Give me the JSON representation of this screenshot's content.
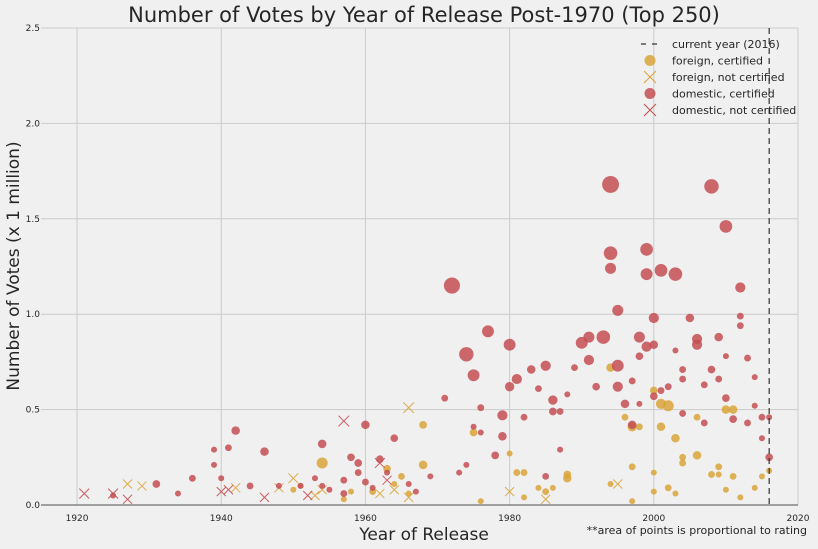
{
  "chart_data": {
    "type": "scatter",
    "title": "Number of Votes by Year of Release Post-1970 (Top 250)",
    "xlabel": "Year of Release",
    "ylabel": "Number of Votes (x 1 million)",
    "footnote": "**area of points is proportional to rating",
    "xlim": [
      1915,
      2020
    ],
    "ylim": [
      0,
      2.5
    ],
    "xticks": [
      1920,
      1940,
      1960,
      1980,
      2000,
      2020
    ],
    "yticks": [
      0.0,
      0.5,
      1.0,
      1.5,
      2.0,
      2.5
    ],
    "ytick_labels": [
      "0.0",
      "0.5",
      "1.0",
      "1.5",
      "2.0",
      "2.5"
    ],
    "grid": true,
    "legend_position": "top-right",
    "vline": {
      "x": 2016,
      "label": "current year (2016)"
    },
    "series": [
      {
        "name": "foreign, certified",
        "marker": "circle",
        "color": "#d9a43a",
        "points": [
          [
            1950,
            0.08,
            8.0
          ],
          [
            1951,
            0.1,
            8.0
          ],
          [
            1954,
            0.22,
            8.6
          ],
          [
            1957,
            0.03,
            8.0
          ],
          [
            1958,
            0.07,
            8.0
          ],
          [
            1961,
            0.07,
            8.1
          ],
          [
            1963,
            0.19,
            8.2
          ],
          [
            1964,
            0.11,
            8.0
          ],
          [
            1965,
            0.15,
            8.1
          ],
          [
            1966,
            0.06,
            8.0
          ],
          [
            1968,
            0.21,
            8.3
          ],
          [
            1968,
            0.42,
            8.2
          ],
          [
            1975,
            0.38,
            8.2
          ],
          [
            1976,
            0.02,
            8.0
          ],
          [
            1980,
            0.27,
            8.0
          ],
          [
            1981,
            0.17,
            8.1
          ],
          [
            1982,
            0.17,
            8.1
          ],
          [
            1982,
            0.04,
            8.0
          ],
          [
            1984,
            0.09,
            8.0
          ],
          [
            1985,
            0.07,
            8.1
          ],
          [
            1986,
            0.09,
            8.0
          ],
          [
            1988,
            0.14,
            8.3
          ],
          [
            1988,
            0.16,
            8.2
          ],
          [
            1994,
            0.11,
            8.0
          ],
          [
            1994,
            0.72,
            8.3
          ],
          [
            1996,
            0.46,
            8.1
          ],
          [
            1997,
            0.41,
            8.4
          ],
          [
            1997,
            0.2,
            8.1
          ],
          [
            1997,
            0.02,
            8.0
          ],
          [
            1998,
            0.41,
            8.1
          ],
          [
            2000,
            0.6,
            8.2
          ],
          [
            2000,
            0.17,
            8.0
          ],
          [
            2000,
            0.07,
            8.0
          ],
          [
            2001,
            0.53,
            8.5
          ],
          [
            2001,
            0.41,
            8.3
          ],
          [
            2002,
            0.52,
            8.6
          ],
          [
            2002,
            0.09,
            8.1
          ],
          [
            2003,
            0.35,
            8.3
          ],
          [
            2003,
            0.06,
            8.0
          ],
          [
            2004,
            0.22,
            8.1
          ],
          [
            2004,
            0.25,
            8.1
          ],
          [
            2006,
            0.46,
            8.1
          ],
          [
            2006,
            0.26,
            8.3
          ],
          [
            2008,
            0.16,
            8.1
          ],
          [
            2009,
            0.2,
            8.1
          ],
          [
            2009,
            0.16,
            8.0
          ],
          [
            2010,
            0.08,
            8.0
          ],
          [
            2010,
            0.5,
            8.3
          ],
          [
            2011,
            0.5,
            8.3
          ],
          [
            2011,
            0.15,
            8.1
          ],
          [
            2012,
            0.04,
            8.0
          ],
          [
            2014,
            0.09,
            8.0
          ],
          [
            2015,
            0.15,
            8.0
          ],
          [
            2016,
            0.18,
            8.0
          ]
        ]
      },
      {
        "name": "foreign, not certified",
        "marker": "x",
        "color": "#d9a43a",
        "points": [
          [
            1927,
            0.11,
            8.0
          ],
          [
            1929,
            0.1,
            8.0
          ],
          [
            1942,
            0.09,
            8.0
          ],
          [
            1948,
            0.09,
            8.0
          ],
          [
            1950,
            0.14,
            8.1
          ],
          [
            1953,
            0.05,
            8.0
          ],
          [
            1954,
            0.08,
            8.0
          ],
          [
            1962,
            0.06,
            8.0
          ],
          [
            1964,
            0.08,
            8.0
          ],
          [
            1966,
            0.51,
            8.2
          ],
          [
            1966,
            0.04,
            8.0
          ],
          [
            1980,
            0.07,
            8.0
          ],
          [
            1985,
            0.03,
            8.0
          ],
          [
            1995,
            0.11,
            8.0
          ]
        ]
      },
      {
        "name": "domestic, certified",
        "marker": "circle",
        "color": "#c44e52",
        "points": [
          [
            1925,
            0.05,
            8.0
          ],
          [
            1931,
            0.11,
            8.2
          ],
          [
            1934,
            0.06,
            8.0
          ],
          [
            1936,
            0.14,
            8.1
          ],
          [
            1939,
            0.29,
            8.0
          ],
          [
            1939,
            0.21,
            8.0
          ],
          [
            1940,
            0.14,
            8.0
          ],
          [
            1941,
            0.3,
            8.1
          ],
          [
            1942,
            0.39,
            8.3
          ],
          [
            1944,
            0.1,
            8.1
          ],
          [
            1946,
            0.28,
            8.3
          ],
          [
            1948,
            0.1,
            8.0
          ],
          [
            1951,
            0.1,
            8.0
          ],
          [
            1953,
            0.14,
            8.0
          ],
          [
            1954,
            0.32,
            8.3
          ],
          [
            1954,
            0.1,
            8.0
          ],
          [
            1955,
            0.08,
            8.0
          ],
          [
            1957,
            0.13,
            8.1
          ],
          [
            1957,
            0.06,
            8.1
          ],
          [
            1958,
            0.25,
            8.2
          ],
          [
            1959,
            0.22,
            8.2
          ],
          [
            1959,
            0.17,
            8.1
          ],
          [
            1960,
            0.42,
            8.3
          ],
          [
            1960,
            0.12,
            8.1
          ],
          [
            1961,
            0.09,
            8.0
          ],
          [
            1962,
            0.24,
            8.2
          ],
          [
            1963,
            0.17,
            8.0
          ],
          [
            1964,
            0.35,
            8.2
          ],
          [
            1966,
            0.11,
            8.0
          ],
          [
            1967,
            0.07,
            8.0
          ],
          [
            1969,
            0.15,
            8.0
          ],
          [
            1971,
            0.56,
            8.1
          ],
          [
            1972,
            1.15,
            9.2
          ],
          [
            1973,
            0.17,
            8.0
          ],
          [
            1974,
            0.79,
            9.0
          ],
          [
            1974,
            0.21,
            8.0
          ],
          [
            1975,
            0.68,
            8.7
          ],
          [
            1975,
            0.41,
            8.0
          ],
          [
            1976,
            0.51,
            8.1
          ],
          [
            1976,
            0.38,
            8.0
          ],
          [
            1977,
            0.91,
            8.7
          ],
          [
            1978,
            0.26,
            8.2
          ],
          [
            1979,
            0.36,
            8.3
          ],
          [
            1979,
            0.47,
            8.5
          ],
          [
            1980,
            0.84,
            8.7
          ],
          [
            1980,
            0.62,
            8.4
          ],
          [
            1981,
            0.66,
            8.5
          ],
          [
            1982,
            0.46,
            8.1
          ],
          [
            1983,
            0.71,
            8.3
          ],
          [
            1984,
            0.61,
            8.1
          ],
          [
            1985,
            0.73,
            8.5
          ],
          [
            1985,
            0.15,
            8.1
          ],
          [
            1986,
            0.55,
            8.4
          ],
          [
            1986,
            0.49,
            8.2
          ],
          [
            1987,
            0.29,
            8.0
          ],
          [
            1987,
            0.49,
            8.1
          ],
          [
            1988,
            0.58,
            8.0
          ],
          [
            1989,
            0.72,
            8.1
          ],
          [
            1990,
            0.85,
            8.7
          ],
          [
            1991,
            0.76,
            8.5
          ],
          [
            1991,
            0.88,
            8.6
          ],
          [
            1992,
            0.62,
            8.2
          ],
          [
            1993,
            0.88,
            8.9
          ],
          [
            1994,
            1.68,
            9.3
          ],
          [
            1994,
            1.32,
            8.9
          ],
          [
            1994,
            1.24,
            8.6
          ],
          [
            1995,
            1.02,
            8.6
          ],
          [
            1995,
            0.73,
            8.7
          ],
          [
            1995,
            0.62,
            8.5
          ],
          [
            1996,
            0.53,
            8.3
          ],
          [
            1997,
            0.65,
            8.1
          ],
          [
            1997,
            0.42,
            8.3
          ],
          [
            1998,
            0.88,
            8.6
          ],
          [
            1998,
            0.78,
            8.2
          ],
          [
            1998,
            0.53,
            8.0
          ],
          [
            1999,
            1.34,
            8.8
          ],
          [
            1999,
            1.21,
            8.7
          ],
          [
            1999,
            0.83,
            8.5
          ],
          [
            2000,
            0.98,
            8.5
          ],
          [
            2000,
            0.84,
            8.3
          ],
          [
            2000,
            0.57,
            8.2
          ],
          [
            2001,
            1.23,
            8.8
          ],
          [
            2001,
            0.6,
            8.1
          ],
          [
            2002,
            0.62,
            8.1
          ],
          [
            2003,
            1.21,
            8.9
          ],
          [
            2003,
            0.81,
            8.0
          ],
          [
            2004,
            0.71,
            8.1
          ],
          [
            2004,
            0.48,
            8.1
          ],
          [
            2004,
            0.66,
            8.1
          ],
          [
            2005,
            0.98,
            8.3
          ],
          [
            2006,
            0.87,
            8.5
          ],
          [
            2006,
            0.84,
            8.5
          ],
          [
            2007,
            0.63,
            8.1
          ],
          [
            2007,
            0.43,
            8.1
          ],
          [
            2008,
            1.67,
            9.0
          ],
          [
            2008,
            0.71,
            8.2
          ],
          [
            2009,
            0.88,
            8.3
          ],
          [
            2009,
            0.66,
            8.1
          ],
          [
            2010,
            1.46,
            8.8
          ],
          [
            2010,
            0.56,
            8.2
          ],
          [
            2010,
            0.78,
            8.0
          ],
          [
            2011,
            0.45,
            8.2
          ],
          [
            2012,
            0.99,
            8.1
          ],
          [
            2012,
            0.94,
            8.1
          ],
          [
            2012,
            1.14,
            8.5
          ],
          [
            2013,
            0.77,
            8.1
          ],
          [
            2013,
            0.43,
            8.1
          ],
          [
            2014,
            0.67,
            8.0
          ],
          [
            2014,
            0.52,
            8.0
          ],
          [
            2015,
            0.46,
            8.1
          ],
          [
            2015,
            0.35,
            8.0
          ],
          [
            2016,
            0.25,
            8.2
          ],
          [
            2016,
            0.46,
            8.0
          ]
        ]
      },
      {
        "name": "domestic, not certified",
        "marker": "x",
        "color": "#c44e52",
        "points": [
          [
            1921,
            0.06,
            8.1
          ],
          [
            1925,
            0.06,
            8.1
          ],
          [
            1927,
            0.03,
            8.0
          ],
          [
            1940,
            0.07,
            8.0
          ],
          [
            1941,
            0.08,
            8.0
          ],
          [
            1946,
            0.04,
            8.0
          ],
          [
            1952,
            0.05,
            8.0
          ],
          [
            1957,
            0.44,
            8.2
          ],
          [
            1962,
            0.22,
            8.1
          ],
          [
            1963,
            0.13,
            8.0
          ]
        ]
      }
    ]
  }
}
